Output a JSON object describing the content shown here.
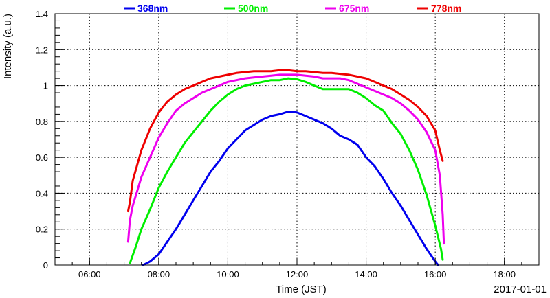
{
  "chart_data": {
    "type": "line",
    "title": "",
    "xlabel": "Time (JST)",
    "ylabel": "Intensity (a.u.)",
    "date_label": "2017-01-01",
    "xlim": [
      "05:00",
      "19:00"
    ],
    "ylim": [
      0,
      1.4
    ],
    "grid": true,
    "legend_position": "top",
    "x_ticks": [
      "06:00",
      "08:00",
      "10:00",
      "12:00",
      "14:00",
      "16:00",
      "18:00"
    ],
    "y_ticks": [
      "0",
      "0.2",
      "0.4",
      "0.6",
      "0.8",
      "1",
      "1.2",
      "1.4"
    ],
    "series": [
      {
        "name": "368nm",
        "color": "#0000ee",
        "points": [
          [
            "07:33",
            0.0
          ],
          [
            "07:45",
            0.02
          ],
          [
            "08:00",
            0.06
          ],
          [
            "08:15",
            0.13
          ],
          [
            "08:30",
            0.2
          ],
          [
            "08:45",
            0.28
          ],
          [
            "09:00",
            0.36
          ],
          [
            "09:15",
            0.44
          ],
          [
            "09:30",
            0.52
          ],
          [
            "09:45",
            0.58
          ],
          [
            "10:00",
            0.65
          ],
          [
            "10:15",
            0.7
          ],
          [
            "10:30",
            0.75
          ],
          [
            "10:45",
            0.78
          ],
          [
            "11:00",
            0.81
          ],
          [
            "11:15",
            0.83
          ],
          [
            "11:30",
            0.84
          ],
          [
            "11:45",
            0.855
          ],
          [
            "12:00",
            0.85
          ],
          [
            "12:15",
            0.83
          ],
          [
            "12:30",
            0.81
          ],
          [
            "12:45",
            0.79
          ],
          [
            "13:00",
            0.76
          ],
          [
            "13:15",
            0.72
          ],
          [
            "13:30",
            0.7
          ],
          [
            "13:45",
            0.67
          ],
          [
            "14:00",
            0.6
          ],
          [
            "14:15",
            0.55
          ],
          [
            "14:30",
            0.48
          ],
          [
            "14:45",
            0.4
          ],
          [
            "15:00",
            0.33
          ],
          [
            "15:15",
            0.25
          ],
          [
            "15:30",
            0.17
          ],
          [
            "15:45",
            0.09
          ],
          [
            "16:00",
            0.02
          ],
          [
            "16:05",
            0.0
          ]
        ]
      },
      {
        "name": "500nm",
        "color": "#00ee00",
        "points": [
          [
            "07:10",
            0.01
          ],
          [
            "07:20",
            0.1
          ],
          [
            "07:30",
            0.2
          ],
          [
            "07:45",
            0.31
          ],
          [
            "08:00",
            0.43
          ],
          [
            "08:15",
            0.52
          ],
          [
            "08:30",
            0.6
          ],
          [
            "08:45",
            0.68
          ],
          [
            "09:00",
            0.74
          ],
          [
            "09:15",
            0.8
          ],
          [
            "09:30",
            0.86
          ],
          [
            "09:45",
            0.91
          ],
          [
            "10:00",
            0.95
          ],
          [
            "10:15",
            0.98
          ],
          [
            "10:30",
            1.0
          ],
          [
            "10:45",
            1.01
          ],
          [
            "11:00",
            1.02
          ],
          [
            "11:15",
            1.03
          ],
          [
            "11:30",
            1.03
          ],
          [
            "11:45",
            1.04
          ],
          [
            "12:00",
            1.035
          ],
          [
            "12:15",
            1.02
          ],
          [
            "12:30",
            1.0
          ],
          [
            "12:45",
            0.98
          ],
          [
            "13:00",
            0.98
          ],
          [
            "13:15",
            0.98
          ],
          [
            "13:30",
            0.98
          ],
          [
            "13:45",
            0.96
          ],
          [
            "14:00",
            0.93
          ],
          [
            "14:15",
            0.89
          ],
          [
            "14:30",
            0.86
          ],
          [
            "14:45",
            0.79
          ],
          [
            "15:00",
            0.73
          ],
          [
            "15:15",
            0.64
          ],
          [
            "15:30",
            0.53
          ],
          [
            "15:45",
            0.39
          ],
          [
            "16:00",
            0.22
          ],
          [
            "16:10",
            0.09
          ],
          [
            "16:13",
            0.03
          ]
        ]
      },
      {
        "name": "675nm",
        "color": "#ee00ee",
        "points": [
          [
            "07:07",
            0.13
          ],
          [
            "07:10",
            0.25
          ],
          [
            "07:15",
            0.33
          ],
          [
            "07:30",
            0.49
          ],
          [
            "07:45",
            0.6
          ],
          [
            "08:00",
            0.71
          ],
          [
            "08:15",
            0.79
          ],
          [
            "08:30",
            0.86
          ],
          [
            "08:45",
            0.9
          ],
          [
            "09:00",
            0.93
          ],
          [
            "09:15",
            0.96
          ],
          [
            "09:30",
            0.98
          ],
          [
            "09:45",
            1.0
          ],
          [
            "10:00",
            1.02
          ],
          [
            "10:15",
            1.03
          ],
          [
            "10:30",
            1.04
          ],
          [
            "10:45",
            1.045
          ],
          [
            "11:00",
            1.05
          ],
          [
            "11:15",
            1.055
          ],
          [
            "11:30",
            1.06
          ],
          [
            "11:45",
            1.06
          ],
          [
            "12:00",
            1.06
          ],
          [
            "12:15",
            1.055
          ],
          [
            "12:30",
            1.05
          ],
          [
            "12:45",
            1.04
          ],
          [
            "13:00",
            1.04
          ],
          [
            "13:15",
            1.04
          ],
          [
            "13:30",
            1.03
          ],
          [
            "13:45",
            1.01
          ],
          [
            "14:00",
            0.99
          ],
          [
            "14:15",
            0.97
          ],
          [
            "14:30",
            0.95
          ],
          [
            "14:45",
            0.93
          ],
          [
            "15:00",
            0.9
          ],
          [
            "15:15",
            0.86
          ],
          [
            "15:30",
            0.81
          ],
          [
            "15:45",
            0.74
          ],
          [
            "16:00",
            0.64
          ],
          [
            "16:08",
            0.5
          ],
          [
            "16:13",
            0.28
          ],
          [
            "16:15",
            0.12
          ]
        ]
      },
      {
        "name": "778nm",
        "color": "#ee0000",
        "points": [
          [
            "07:07",
            0.3
          ],
          [
            "07:10",
            0.35
          ],
          [
            "07:15",
            0.47
          ],
          [
            "07:30",
            0.64
          ],
          [
            "07:45",
            0.76
          ],
          [
            "08:00",
            0.85
          ],
          [
            "08:15",
            0.91
          ],
          [
            "08:30",
            0.95
          ],
          [
            "08:45",
            0.98
          ],
          [
            "09:00",
            1.0
          ],
          [
            "09:15",
            1.02
          ],
          [
            "09:30",
            1.04
          ],
          [
            "09:45",
            1.05
          ],
          [
            "10:00",
            1.06
          ],
          [
            "10:15",
            1.07
          ],
          [
            "10:30",
            1.075
          ],
          [
            "10:45",
            1.08
          ],
          [
            "11:00",
            1.08
          ],
          [
            "11:15",
            1.08
          ],
          [
            "11:30",
            1.085
          ],
          [
            "11:45",
            1.085
          ],
          [
            "12:00",
            1.08
          ],
          [
            "12:15",
            1.08
          ],
          [
            "12:30",
            1.075
          ],
          [
            "12:45",
            1.07
          ],
          [
            "13:00",
            1.07
          ],
          [
            "13:15",
            1.065
          ],
          [
            "13:30",
            1.06
          ],
          [
            "13:45",
            1.05
          ],
          [
            "14:00",
            1.04
          ],
          [
            "14:15",
            1.02
          ],
          [
            "14:30",
            1.0
          ],
          [
            "14:45",
            0.98
          ],
          [
            "15:00",
            0.95
          ],
          [
            "15:15",
            0.92
          ],
          [
            "15:30",
            0.88
          ],
          [
            "15:45",
            0.83
          ],
          [
            "16:00",
            0.75
          ],
          [
            "16:08",
            0.64
          ],
          [
            "16:13",
            0.58
          ]
        ]
      }
    ]
  }
}
